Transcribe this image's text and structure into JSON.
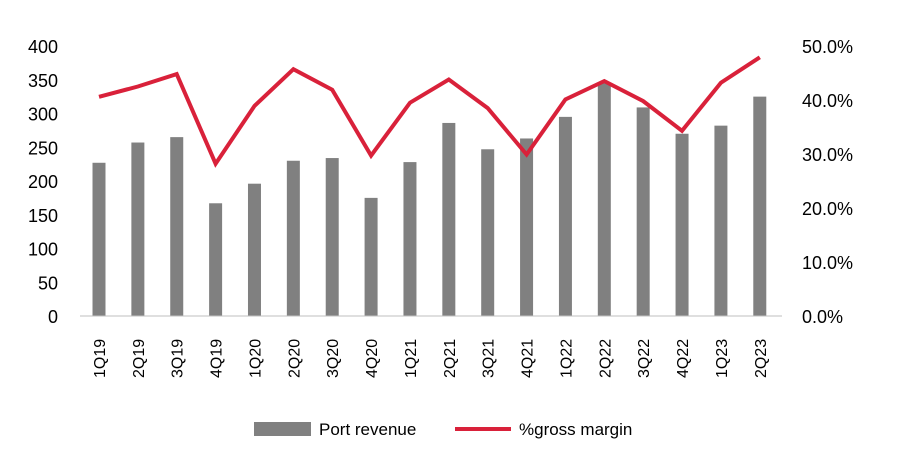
{
  "chart_data": {
    "type": "bar",
    "categories": [
      "1Q19",
      "2Q19",
      "3Q19",
      "4Q19",
      "1Q20",
      "2Q20",
      "3Q20",
      "4Q20",
      "1Q21",
      "2Q21",
      "3Q21",
      "4Q21",
      "1Q22",
      "2Q22",
      "3Q22",
      "4Q22",
      "1Q23",
      "2Q23"
    ],
    "series": [
      {
        "name": "Port revenue",
        "type": "bar",
        "axis": "left",
        "color": "#808080",
        "values": [
          227,
          257,
          265,
          167,
          196,
          230,
          234,
          175,
          228,
          286,
          247,
          263,
          295,
          345,
          309,
          270,
          282,
          325
        ]
      },
      {
        "name": "%gross margin",
        "type": "line",
        "axis": "right",
        "color": "#d9213a",
        "values": [
          40.6,
          42.5,
          44.8,
          28.2,
          38.9,
          45.7,
          41.9,
          29.7,
          39.5,
          43.8,
          38.5,
          29.9,
          40.1,
          43.5,
          39.8,
          34.3,
          43.2,
          47.9
        ]
      }
    ],
    "left_axis": {
      "min": 0,
      "max": 400,
      "ticks": [
        "0",
        "50",
        "100",
        "150",
        "200",
        "250",
        "300",
        "350",
        "400"
      ]
    },
    "right_axis": {
      "min": 0,
      "max": 50,
      "ticks": [
        "0.0%",
        "10.0%",
        "20.0%",
        "30.0%",
        "40.0%",
        "50.0%"
      ]
    },
    "grid": false,
    "legend_position": "bottom"
  }
}
